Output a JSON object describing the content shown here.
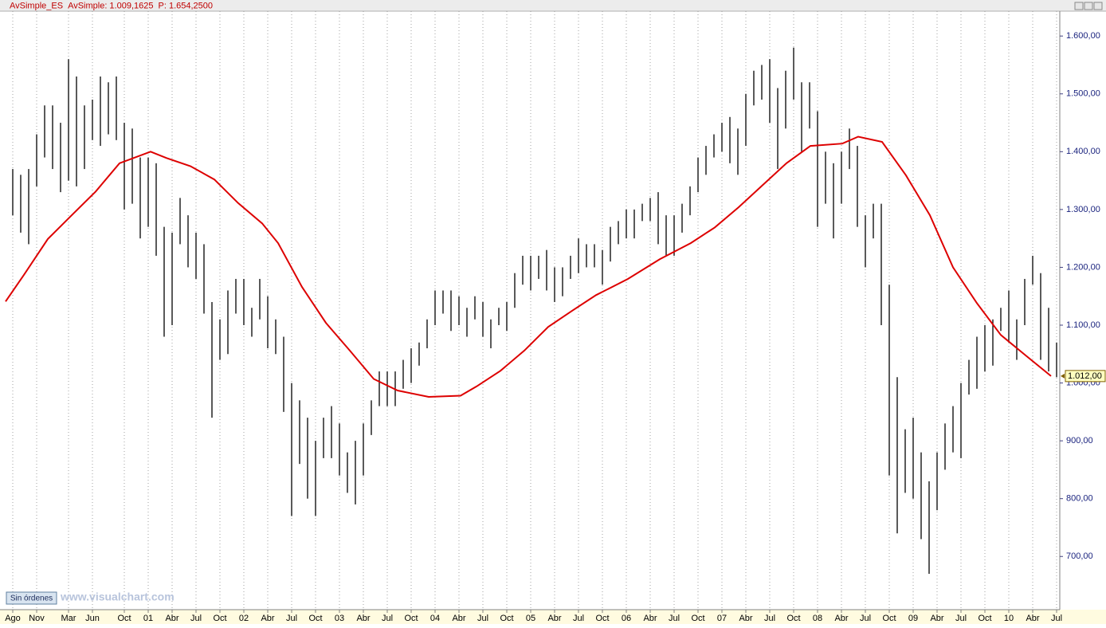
{
  "chart_data": {
    "type": "hlc-bar",
    "header_texts": [
      "AvSimple: 1.009,1625",
      "P: 1.654,2500"
    ],
    "order_button": "Sin órdenes",
    "watermark": "www.visualchart.com",
    "last_value": {
      "value": 1012,
      "label": "1.012,00"
    },
    "xlim": [
      -1.4,
      131.4
    ],
    "ylim": [
      608,
      1643
    ],
    "grid": true,
    "xticks": [
      {
        "value": 0,
        "label": "Ago"
      },
      {
        "value": 3,
        "label": "Nov"
      },
      {
        "value": 7,
        "label": "Mar"
      },
      {
        "value": 10,
        "label": "Jun"
      },
      {
        "value": 14,
        "label": "Oct"
      },
      {
        "value": 17,
        "label": "01"
      },
      {
        "value": 20,
        "label": "Abr"
      },
      {
        "value": 23,
        "label": "Jul"
      },
      {
        "value": 26,
        "label": "Oct"
      },
      {
        "value": 29,
        "label": "02"
      },
      {
        "value": 32,
        "label": "Abr"
      },
      {
        "value": 35,
        "label": "Jul"
      },
      {
        "value": 38,
        "label": "Oct"
      },
      {
        "value": 41,
        "label": "03"
      },
      {
        "value": 44,
        "label": "Abr"
      },
      {
        "value": 47,
        "label": "Jul"
      },
      {
        "value": 50,
        "label": "Oct"
      },
      {
        "value": 53,
        "label": "04"
      },
      {
        "value": 56,
        "label": "Abr"
      },
      {
        "value": 59,
        "label": "Jul"
      },
      {
        "value": 62,
        "label": "Oct"
      },
      {
        "value": 65,
        "label": "05"
      },
      {
        "value": 68,
        "label": "Abr"
      },
      {
        "value": 71,
        "label": "Jul"
      },
      {
        "value": 74,
        "label": "Oct"
      },
      {
        "value": 77,
        "label": "06"
      },
      {
        "value": 80,
        "label": "Abr"
      },
      {
        "value": 83,
        "label": "Jul"
      },
      {
        "value": 86,
        "label": "Oct"
      },
      {
        "value": 89,
        "label": "07"
      },
      {
        "value": 92,
        "label": "Abr"
      },
      {
        "value": 95,
        "label": "Jul"
      },
      {
        "value": 98,
        "label": "Oct"
      },
      {
        "value": 101,
        "label": "08"
      },
      {
        "value": 104,
        "label": "Abr"
      },
      {
        "value": 107,
        "label": "Jul"
      },
      {
        "value": 110,
        "label": "Oct"
      },
      {
        "value": 113,
        "label": "09"
      },
      {
        "value": 116,
        "label": "Abr"
      },
      {
        "value": 119,
        "label": "Jul"
      },
      {
        "value": 122,
        "label": "Oct"
      },
      {
        "value": 125,
        "label": "10"
      },
      {
        "value": 128,
        "label": "Abr"
      },
      {
        "value": 131,
        "label": "Jul"
      }
    ],
    "yticks": [
      {
        "value": 700,
        "label": "700,00"
      },
      {
        "value": 800,
        "label": "800,00"
      },
      {
        "value": 900,
        "label": "900,00"
      },
      {
        "value": 1000,
        "label": "1.000,00"
      },
      {
        "value": 1100,
        "label": "1.100,00"
      },
      {
        "value": 1200,
        "label": "1.200,00"
      },
      {
        "value": 1300,
        "label": "1.300,00"
      },
      {
        "value": 1400,
        "label": "1.400,00"
      },
      {
        "value": 1500,
        "label": "1.500,00"
      },
      {
        "value": 1600,
        "label": "1.600,00"
      }
    ],
    "series": [
      {
        "name": "AvSimple_ES",
        "color": "#000000",
        "x": [
          0,
          1,
          2,
          3,
          4,
          5,
          6,
          7,
          8,
          9,
          10,
          11,
          12,
          13,
          14,
          15,
          16,
          17,
          18,
          19,
          20,
          21,
          22,
          23,
          24,
          25,
          26,
          27,
          28,
          29,
          30,
          31,
          32,
          33,
          34,
          35,
          36,
          37,
          38,
          39,
          40,
          41,
          42,
          43,
          44,
          45,
          46,
          47,
          48,
          49,
          50,
          51,
          52,
          53,
          54,
          55,
          56,
          57,
          58,
          59,
          60,
          61,
          62,
          63,
          64,
          65,
          66,
          67,
          68,
          69,
          70,
          71,
          72,
          73,
          74,
          75,
          76,
          77,
          78,
          79,
          80,
          81,
          82,
          83,
          84,
          85,
          86,
          87,
          88,
          89,
          90,
          91,
          92,
          93,
          94,
          95,
          96,
          97,
          98,
          99,
          100,
          101,
          102,
          103,
          104,
          105,
          106,
          107,
          108,
          109,
          110,
          111,
          112,
          113,
          114,
          115,
          116,
          117,
          118,
          119,
          120,
          121,
          122,
          123,
          124,
          125,
          126,
          127,
          128,
          129,
          130,
          131
        ],
        "high": [
          1370,
          1360,
          1370,
          1430,
          1480,
          1480,
          1450,
          1560,
          1530,
          1480,
          1490,
          1530,
          1520,
          1530,
          1450,
          1440,
          1390,
          1390,
          1380,
          1270,
          1260,
          1320,
          1290,
          1260,
          1240,
          1140,
          1110,
          1160,
          1180,
          1180,
          1130,
          1180,
          1150,
          1110,
          1080,
          1000,
          970,
          940,
          900,
          940,
          960,
          930,
          880,
          900,
          930,
          970,
          1020,
          1020,
          1020,
          1040,
          1060,
          1070,
          1110,
          1160,
          1160,
          1160,
          1150,
          1130,
          1150,
          1140,
          1110,
          1130,
          1140,
          1190,
          1220,
          1220,
          1220,
          1230,
          1200,
          1200,
          1220,
          1250,
          1240,
          1240,
          1230,
          1270,
          1280,
          1300,
          1300,
          1310,
          1320,
          1330,
          1290,
          1290,
          1310,
          1340,
          1390,
          1410,
          1430,
          1450,
          1460,
          1440,
          1500,
          1540,
          1550,
          1560,
          1510,
          1540,
          1580,
          1520,
          1520,
          1470,
          1400,
          1380,
          1400,
          1440,
          1410,
          1290,
          1310,
          1310,
          1170,
          1010,
          920,
          940,
          880,
          830,
          880,
          930,
          960,
          1000,
          1040,
          1080,
          1100,
          1110,
          1130,
          1160,
          1110,
          1180,
          1220,
          1190,
          1130,
          1070
        ],
        "low": [
          1290,
          1260,
          1240,
          1340,
          1390,
          1370,
          1330,
          1350,
          1340,
          1370,
          1420,
          1410,
          1430,
          1420,
          1300,
          1310,
          1250,
          1270,
          1220,
          1080,
          1100,
          1240,
          1200,
          1180,
          1120,
          940,
          1040,
          1050,
          1120,
          1100,
          1080,
          1110,
          1060,
          1050,
          950,
          770,
          860,
          800,
          770,
          870,
          870,
          840,
          810,
          790,
          840,
          910,
          960,
          960,
          960,
          990,
          1000,
          1030,
          1060,
          1100,
          1120,
          1090,
          1100,
          1080,
          1110,
          1080,
          1060,
          1100,
          1090,
          1130,
          1170,
          1160,
          1180,
          1160,
          1140,
          1150,
          1180,
          1190,
          1200,
          1200,
          1170,
          1210,
          1240,
          1250,
          1250,
          1280,
          1280,
          1240,
          1220,
          1220,
          1260,
          1290,
          1330,
          1360,
          1390,
          1400,
          1380,
          1360,
          1410,
          1480,
          1490,
          1450,
          1370,
          1440,
          1490,
          1400,
          1440,
          1270,
          1310,
          1250,
          1310,
          1370,
          1270,
          1200,
          1250,
          1100,
          840,
          740,
          810,
          800,
          730,
          670,
          780,
          850,
          880,
          870,
          980,
          990,
          1020,
          1030,
          1090,
          1070,
          1040,
          1100,
          1170,
          1040,
          1020,
          1010
        ]
      },
      {
        "name": "AvSimple",
        "color": "#dd0000",
        "x": [
          -0.9,
          1.4,
          4.4,
          7.4,
          10.4,
          13.4,
          17.3,
          19.3,
          22.3,
          25.3,
          28.3,
          31.3,
          33.3,
          36.3,
          39.3,
          42.3,
          45.3,
          48.3,
          52.2,
          56.2,
          58.2,
          61.2,
          64.2,
          67.2,
          70.2,
          73.2,
          77.2,
          81.2,
          85.1,
          88.1,
          91.1,
          94.1,
          97.1,
          100.1,
          104.1,
          106.1,
          109.1,
          112.1,
          115.1,
          118,
          121,
          124,
          127,
          130.3
        ],
        "values": [
          1141,
          1187,
          1249,
          1290,
          1331,
          1380,
          1400,
          1389,
          1375,
          1352,
          1311,
          1276,
          1242,
          1166,
          1104,
          1056,
          1007,
          987,
          976,
          978,
          994,
          1021,
          1056,
          1097,
          1125,
          1152,
          1180,
          1214,
          1242,
          1269,
          1304,
          1342,
          1380,
          1410,
          1414,
          1426,
          1417,
          1359,
          1290,
          1200,
          1138,
          1083,
          1049,
          1012
        ]
      }
    ]
  }
}
